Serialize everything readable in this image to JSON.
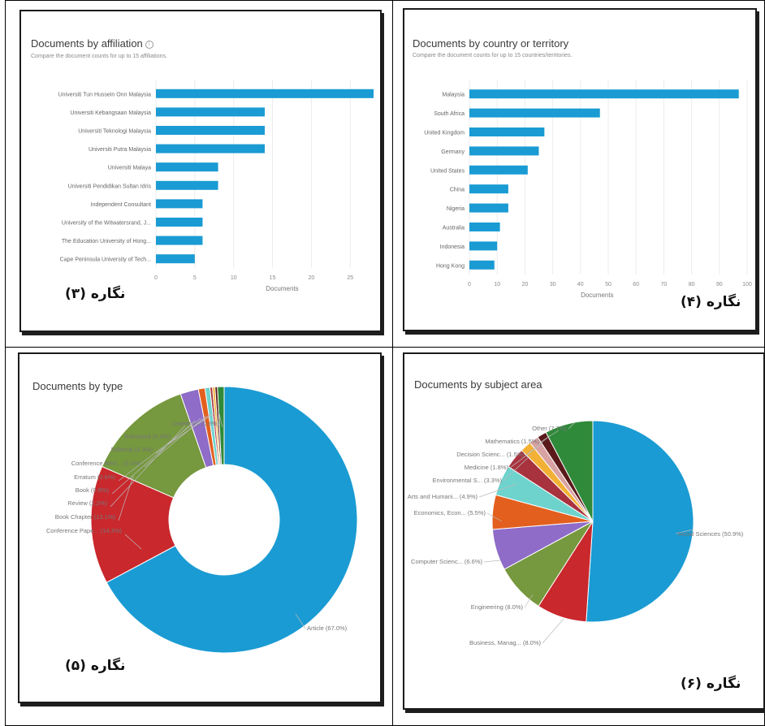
{
  "captions": {
    "fig3": "نگاره (۳)",
    "fig4": "نگاره (۴)",
    "fig5": "نگاره (۵)",
    "fig6": "نگاره (۶)"
  },
  "chart_data": [
    {
      "type": "bar",
      "orientation": "horizontal",
      "title": "Documents by affiliation",
      "subtitle": "Compare the document counts for up to 15 affiliations.",
      "xlabel": "Documents",
      "xticks": [
        "0",
        "5",
        "10",
        "15",
        "20",
        "25"
      ],
      "xlim": [
        0,
        28
      ],
      "categories": [
        "Universiti Tun Hussein Onn Malaysia",
        "Universiti Kebangsaan Malaysia",
        "Universiti Teknologi Malaysia",
        "Universiti Putra Malaysia",
        "Universiti Malaya",
        "Universiti Pendidikan Sultan Idris",
        "Independent Consultant",
        "University of the Witwatersrand, J...",
        "The Education University of Hong...",
        "Cape Peninsula University of Tech..."
      ],
      "values": [
        28,
        14,
        14,
        14,
        8,
        8,
        6,
        6,
        6,
        5
      ],
      "color": "#1a9bd3",
      "grid": true
    },
    {
      "type": "bar",
      "orientation": "horizontal",
      "title": "Documents by country or territory",
      "subtitle": "Compare the document counts for up to 15 countries/territories.",
      "xlabel": "Documents",
      "xticks": [
        "0",
        "10",
        "20",
        "30",
        "40",
        "50",
        "60",
        "70",
        "80",
        "90",
        "100"
      ],
      "xlim": [
        0,
        100
      ],
      "categories": [
        "Malaysia",
        "South Africa",
        "United Kingdom",
        "Germany",
        "United States",
        "China",
        "Nigeria",
        "Australia",
        "Indonesia",
        "Hong Kong"
      ],
      "values": [
        97,
        47,
        27,
        25,
        21,
        14,
        14,
        11,
        10,
        9
      ],
      "color": "#1a9bd3",
      "grid": true
    },
    {
      "type": "donut",
      "title": "Documents by type",
      "slices": [
        {
          "label": "Article (67.0%)",
          "value": 67.0,
          "color": "#1a9bd3"
        },
        {
          "label": "Conference Pape... (14.3%)",
          "value": 14.3,
          "color": "#c9282d"
        },
        {
          "label": "Book Chapter (13.1%)",
          "value": 13.1,
          "color": "#76983e"
        },
        {
          "label": "Review (2.2%)",
          "value": 2.2,
          "color": "#8e6cc8"
        },
        {
          "label": "Book (0.8%)",
          "value": 0.8,
          "color": "#e35f1e"
        },
        {
          "label": "Erratum (0.6%)",
          "value": 0.6,
          "color": "#6fd3cd"
        },
        {
          "label": "Conference Revi... (0.3%)",
          "value": 0.3,
          "color": "#a8323e"
        },
        {
          "label": "Editorial (0.3%)",
          "value": 0.3,
          "color": "#f2b134"
        },
        {
          "label": "Retracted (0.3%)",
          "value": 0.3,
          "color": "#5a1a1a"
        },
        {
          "label": "Undefined (0.8%)",
          "value": 0.8,
          "color": "#2f8a3a"
        }
      ]
    },
    {
      "type": "pie",
      "title": "Documents by subject area",
      "slices": [
        {
          "label": "Social Sciences (50.9%)",
          "value": 50.9,
          "color": "#1a9bd3"
        },
        {
          "label": "Business, Manag... (8.0%)",
          "value": 8.0,
          "color": "#c9282d"
        },
        {
          "label": "Engineering (8.0%)",
          "value": 8.0,
          "color": "#76983e"
        },
        {
          "label": "Computer Scienc... (6.6%)",
          "value": 6.6,
          "color": "#8e6cc8"
        },
        {
          "label": "Economics, Econ... (5.5%)",
          "value": 5.5,
          "color": "#e35f1e"
        },
        {
          "label": "Arts and Humani... (4.9%)",
          "value": 4.9,
          "color": "#6fd3cd"
        },
        {
          "label": "Environmental S... (3.3%)",
          "value": 3.3,
          "color": "#a8323e"
        },
        {
          "label": "Medicine (1.8%)",
          "value": 1.8,
          "color": "#f2b134"
        },
        {
          "label": "Decision Scienc... (1.5%)",
          "value": 1.5,
          "color": "#d9a3a3"
        },
        {
          "label": "Mathematics (1.5%)",
          "value": 1.5,
          "color": "#5a1a1a"
        },
        {
          "label": "Other (7.7%)",
          "value": 7.7,
          "color": "#2f8a3a"
        }
      ]
    }
  ]
}
